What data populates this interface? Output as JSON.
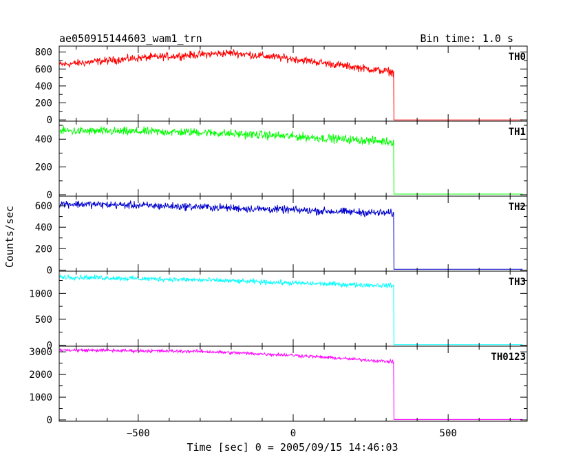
{
  "chart_data": {
    "type": "line",
    "title": "ae050915144603_wam1_trn",
    "subtitle": "Bin time: 1.0 s",
    "xlabel": "Time [sec] 0 = 2005/09/15 14:46:03",
    "ylabel": "Counts/sec",
    "xlim": [
      -755,
      755
    ],
    "x_ticks": [
      -500,
      0,
      500
    ],
    "drop_time": 325,
    "panels": [
      {
        "name": "TH0",
        "color": "#ff0000",
        "ylim": [
          -15,
          870
        ],
        "y_ticks": [
          0,
          200,
          400,
          600,
          800
        ],
        "trend": [
          [
            -755,
            650
          ],
          [
            -500,
            730
          ],
          [
            -200,
            790
          ],
          [
            0,
            720
          ],
          [
            325,
            560
          ]
        ],
        "noise": 45,
        "after_drop": 0
      },
      {
        "name": "TH1",
        "color": "#00ff00",
        "ylim": [
          -10,
          530
        ],
        "y_ticks": [
          0,
          200,
          400
        ],
        "trend": [
          [
            -755,
            460
          ],
          [
            -300,
            450
          ],
          [
            0,
            420
          ],
          [
            325,
            380
          ]
        ],
        "noise": 30,
        "after_drop": 5
      },
      {
        "name": "TH2",
        "color": "#0000cc",
        "ylim": [
          -10,
          690
        ],
        "y_ticks": [
          0,
          200,
          400,
          600
        ],
        "trend": [
          [
            -755,
            620
          ],
          [
            -300,
            590
          ],
          [
            0,
            560
          ],
          [
            325,
            530
          ]
        ],
        "noise": 35,
        "after_drop": 8
      },
      {
        "name": "TH3",
        "color": "#00ffff",
        "ylim": [
          -20,
          1430
        ],
        "y_ticks": [
          0,
          500,
          1000
        ],
        "trend": [
          [
            -755,
            1320
          ],
          [
            -300,
            1260
          ],
          [
            0,
            1200
          ],
          [
            325,
            1150
          ]
        ],
        "noise": 45,
        "after_drop": 10
      },
      {
        "name": "TH0123",
        "color": "#ff00ff",
        "ylim": [
          -60,
          3250
        ],
        "y_ticks": [
          0,
          1000,
          2000,
          3000
        ],
        "trend": [
          [
            -755,
            3080
          ],
          [
            -300,
            3020
          ],
          [
            0,
            2850
          ],
          [
            325,
            2560
          ]
        ],
        "noise": 70,
        "after_drop": 20
      }
    ]
  }
}
